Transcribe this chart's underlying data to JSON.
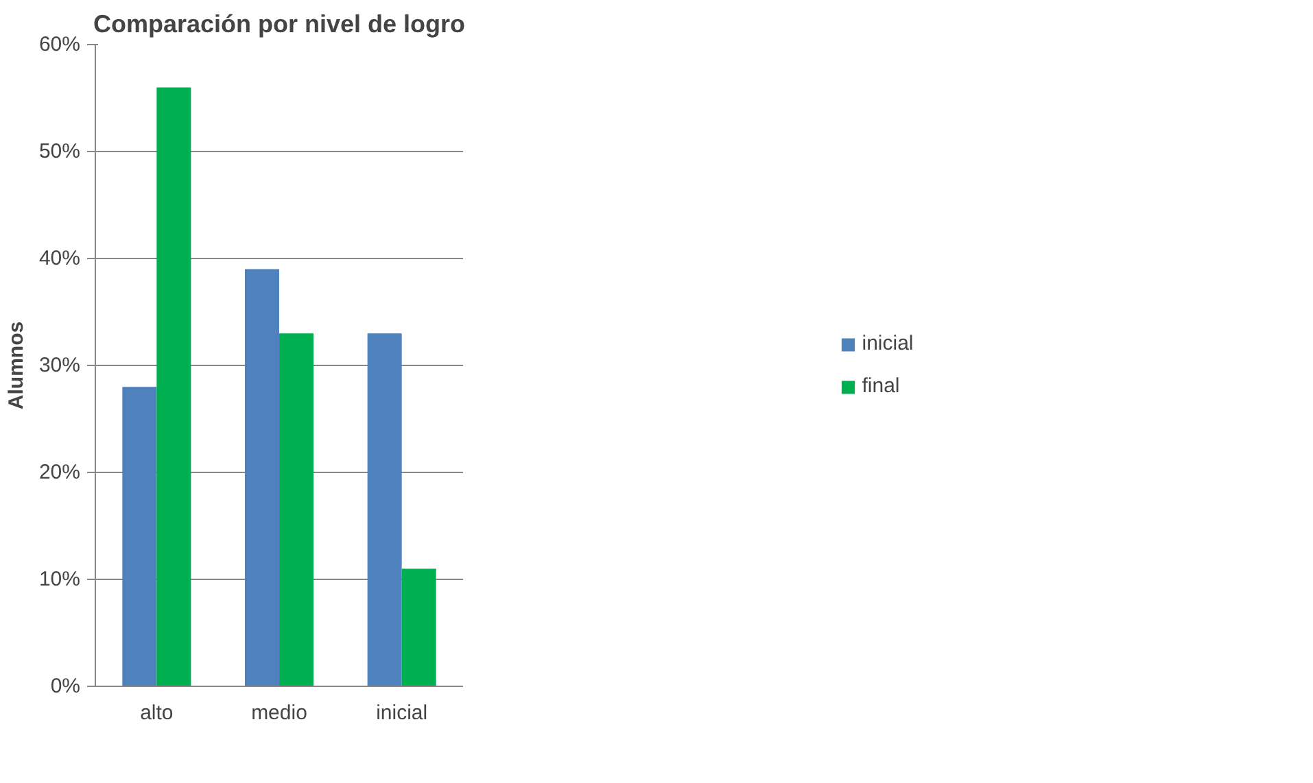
{
  "chart_data": {
    "type": "bar",
    "title": "Comparación por nivel de logro",
    "ylabel": "Alumnos",
    "categories": [
      "alto",
      "medio",
      "inicial"
    ],
    "series": [
      {
        "name": "inicial",
        "color": "#4f81bd",
        "values": [
          28,
          39,
          33
        ]
      },
      {
        "name": "final",
        "color": "#00b050",
        "values": [
          56,
          33,
          11
        ]
      }
    ],
    "ylim": [
      0,
      60
    ],
    "yticks": [
      {
        "value": 0,
        "label": "0%"
      },
      {
        "value": 10,
        "label": "10%"
      },
      {
        "value": 20,
        "label": "20%"
      },
      {
        "value": 30,
        "label": "30%"
      },
      {
        "value": 40,
        "label": "40%"
      },
      {
        "value": 50,
        "label": "50%"
      },
      {
        "value": 60,
        "label": "60%"
      }
    ],
    "grid": "y",
    "legend": "right"
  }
}
